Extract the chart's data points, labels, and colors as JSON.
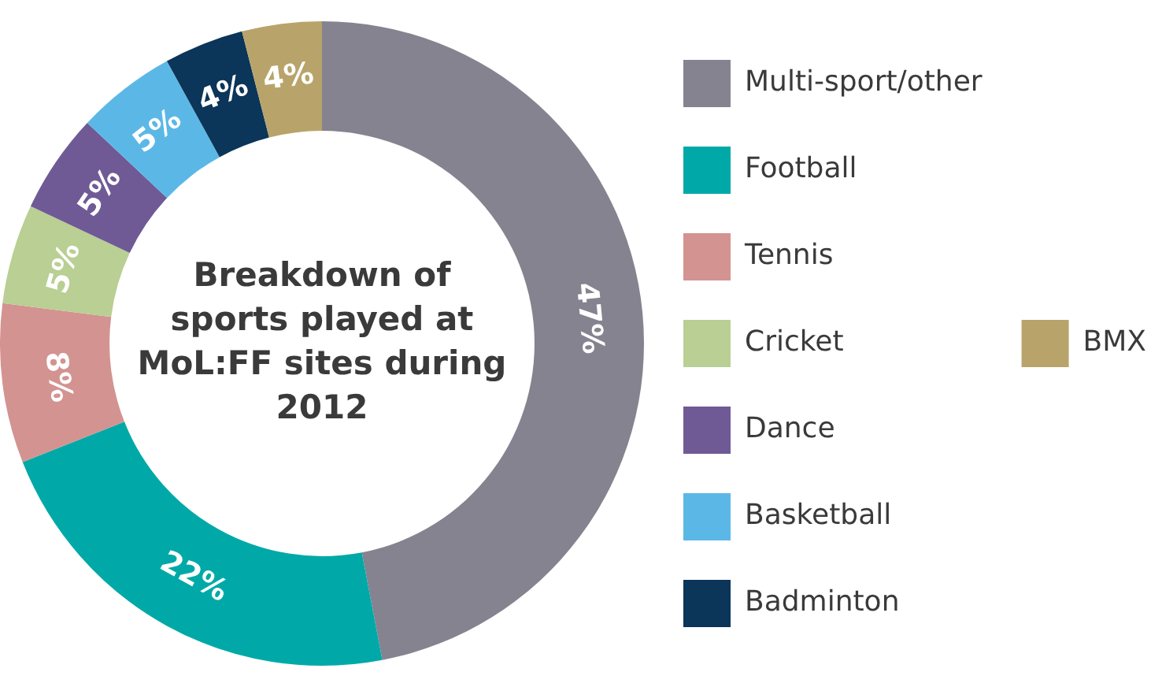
{
  "chart_data": {
    "type": "donut",
    "title": "Breakdown of sports played at MoL:FF sites during 2012",
    "categories": [
      "Multi-sport/other",
      "Football",
      "Tennis",
      "Cricket",
      "Dance",
      "Basketball",
      "Badminton",
      "BMX"
    ],
    "values": [
      47,
      22,
      8,
      5,
      5,
      5,
      4,
      4
    ],
    "colors": [
      "#85838f",
      "#00a9a7",
      "#d39391",
      "#b9cf93",
      "#6f5a96",
      "#5bb8e6",
      "#0b3559",
      "#b8a46a"
    ],
    "value_labels": [
      "47%",
      "22%",
      "8%",
      "5%",
      "5%",
      "5%",
      "4%",
      "4%"
    ],
    "legend": "right"
  }
}
